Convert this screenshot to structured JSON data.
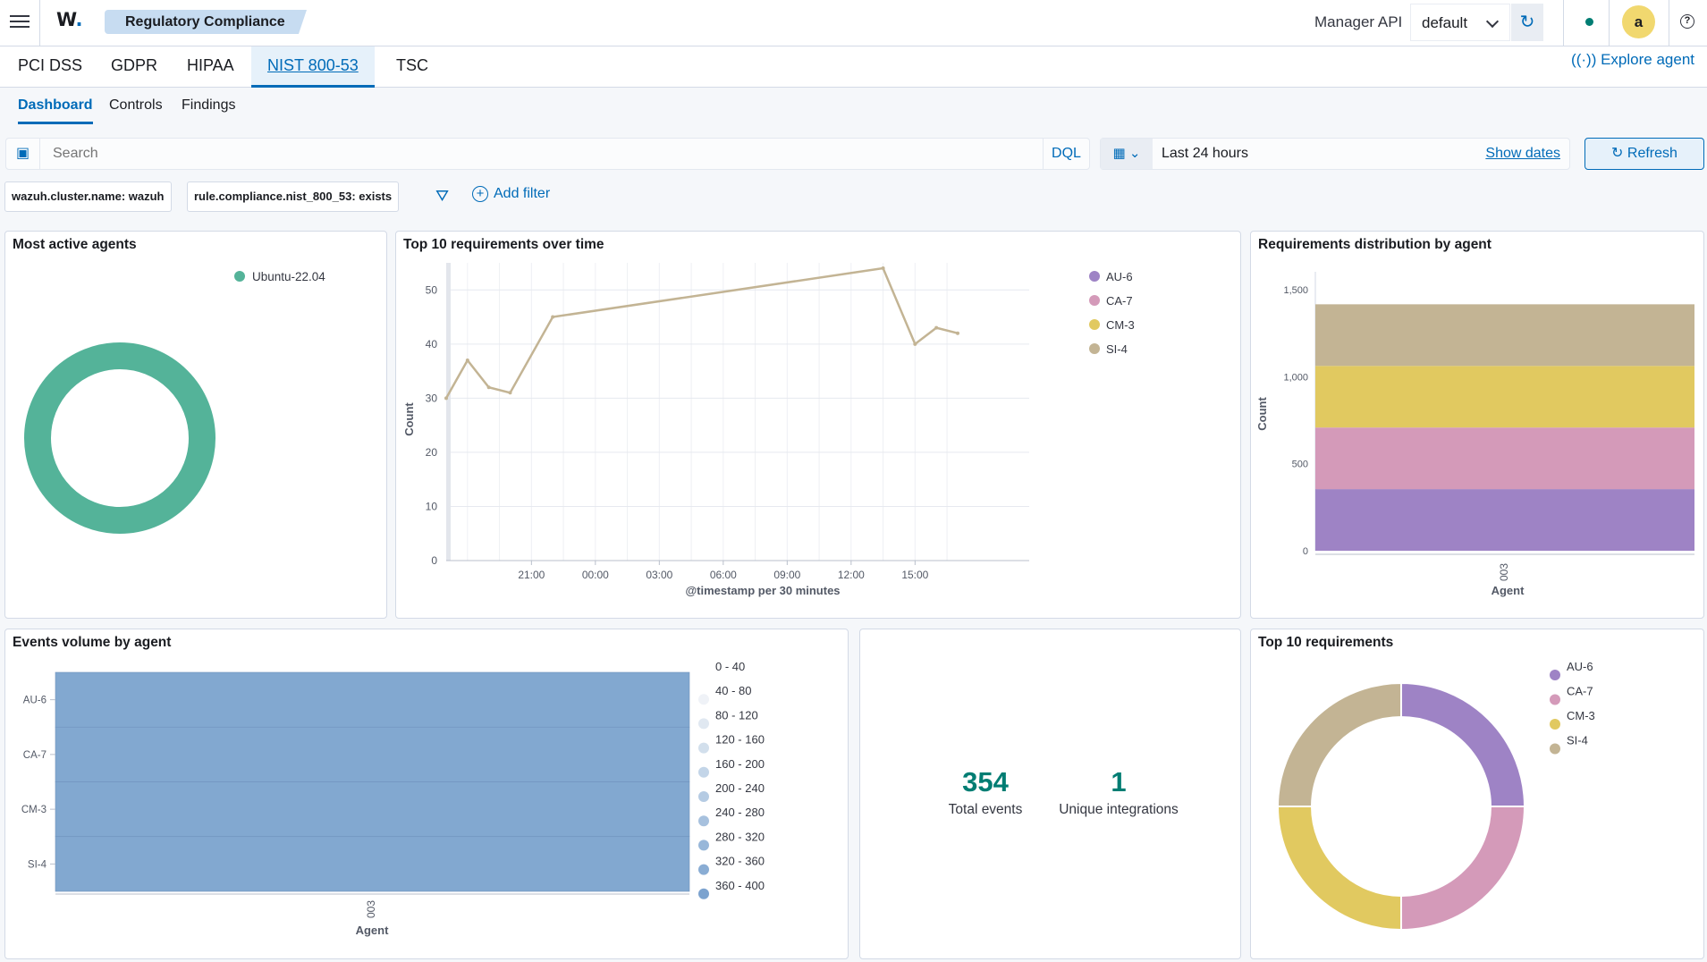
{
  "header": {
    "logo": "W",
    "breadcrumb": "Regulatory Compliance",
    "manager_label": "Manager API",
    "manager_value": "default",
    "avatar_letter": "a"
  },
  "tabs": [
    {
      "label": "PCI DSS",
      "active": false
    },
    {
      "label": "GDPR",
      "active": false
    },
    {
      "label": "HIPAA",
      "active": false
    },
    {
      "label": "NIST 800-53",
      "active": true
    },
    {
      "label": "TSC",
      "active": false
    }
  ],
  "explore_agent": "Explore agent",
  "subtabs": [
    {
      "label": "Dashboard",
      "active": true
    },
    {
      "label": "Controls",
      "active": false
    },
    {
      "label": "Findings",
      "active": false
    }
  ],
  "search": {
    "placeholder": "Search",
    "language": "DQL"
  },
  "date": {
    "range": "Last 24 hours",
    "show_dates": "Show dates",
    "refresh": "Refresh"
  },
  "filters": [
    "wazuh.cluster.name: wazuh",
    "rule.compliance.nist_800_53: exists"
  ],
  "add_filter": "Add filter",
  "colors": {
    "teal": "#54b399",
    "purple": "#9e83c5",
    "pink": "#d49ab9",
    "yellow": "#e1c960",
    "tan": "#c3b494",
    "heat": "#82a8d0",
    "accent": "#006bb8",
    "metric": "#017d73"
  },
  "panels": {
    "most_active": {
      "title": "Most active agents",
      "legend": [
        "Ubuntu-22.04"
      ],
      "chart_data": {
        "type": "pie",
        "labels": [
          "Ubuntu-22.04"
        ],
        "values": [
          100
        ]
      }
    },
    "top10_time": {
      "title": "Top 10 requirements over time",
      "legend": [
        "AU-6",
        "CA-7",
        "CM-3",
        "SI-4"
      ],
      "chart_data": {
        "type": "line",
        "xlabel": "@timestamp per 30 minutes",
        "ylabel": "Count",
        "x_ticks": [
          "21:00",
          "00:00",
          "03:00",
          "06:00",
          "09:00",
          "12:00",
          "15:00"
        ],
        "y_ticks": [
          0,
          10,
          20,
          30,
          40,
          50
        ],
        "ylim": [
          0,
          55
        ],
        "series": [
          {
            "name": "SI-4",
            "x": [
              17.0,
              18.0,
              19.0,
              20.0,
              22.0,
              13.5,
              15.0,
              16.0,
              17.0
            ],
            "day": [
              0,
              0,
              0,
              0,
              0,
              1,
              1,
              1,
              1
            ],
            "y": [
              30,
              37,
              32,
              31,
              45,
              54,
              40,
              43,
              42
            ]
          }
        ]
      }
    },
    "req_dist": {
      "title": "Requirements distribution by agent",
      "chart_data": {
        "type": "bar",
        "categories": [
          "003"
        ],
        "xlabel": "Agent",
        "ylabel": "Count",
        "y_ticks": [
          "0",
          "500",
          "1,000",
          "1,500"
        ],
        "ylim": [
          0,
          1500
        ],
        "series": [
          {
            "name": "AU-6",
            "values": [
              354
            ]
          },
          {
            "name": "CA-7",
            "values": [
              354
            ]
          },
          {
            "name": "CM-3",
            "values": [
              354
            ]
          },
          {
            "name": "SI-4",
            "values": [
              354
            ]
          }
        ]
      }
    },
    "events_volume": {
      "title": "Events volume by agent",
      "chart_data": {
        "type": "heatmap",
        "rows": [
          "AU-6",
          "CA-7",
          "CM-3",
          "SI-4"
        ],
        "columns": [
          "003"
        ],
        "xlabel": "Agent",
        "values": [
          [
            354
          ],
          [
            354
          ],
          [
            354
          ],
          [
            354
          ]
        ]
      },
      "legend": [
        "0 - 40",
        "40 - 80",
        "80 - 120",
        "120 - 160",
        "160 - 200",
        "200 - 240",
        "240 - 280",
        "280 - 320",
        "320 - 360",
        "360 - 400"
      ]
    },
    "metrics": [
      {
        "value": "354",
        "label": "Total events"
      },
      {
        "value": "1",
        "label": "Unique integrations"
      }
    ],
    "top10_req": {
      "title": "Top 10 requirements",
      "legend": [
        "AU-6",
        "CA-7",
        "CM-3",
        "SI-4"
      ],
      "chart_data": {
        "type": "pie",
        "labels": [
          "AU-6",
          "CA-7",
          "CM-3",
          "SI-4"
        ],
        "values": [
          25,
          25,
          25,
          25
        ]
      }
    }
  }
}
